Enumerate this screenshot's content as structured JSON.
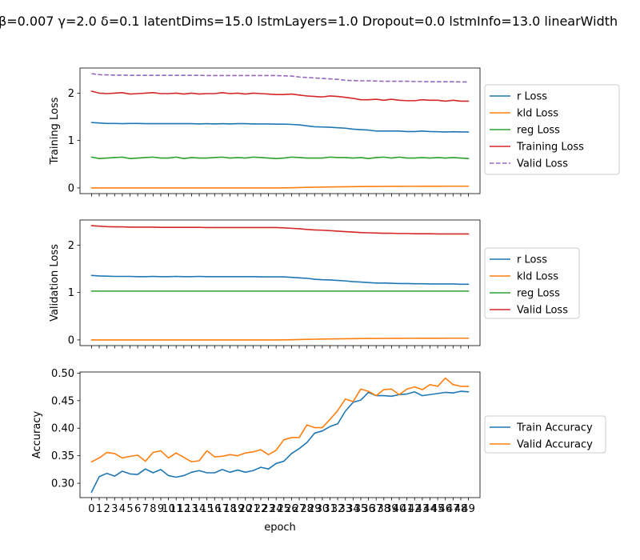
{
  "figure": {
    "title": "β=0.007 γ=2.0 δ=0.1 latentDims=15.0 lstmLayers=1.0 Dropout=0.0 lstmInfo=13.0 linearWidth",
    "xlabel": "epoch"
  },
  "chart_data": [
    {
      "type": "line",
      "ylabel": "Training Loss",
      "xlim": [
        -1.5,
        50.5
      ],
      "ylim": [
        -0.12,
        2.53
      ],
      "yticks": [
        0,
        1,
        2
      ],
      "grid": false,
      "legend_placement": "outside-right",
      "series": [
        {
          "name": "r Loss",
          "color": "#1f77b4",
          "dash": "solid",
          "values": [
            1.38,
            1.37,
            1.36,
            1.36,
            1.355,
            1.36,
            1.36,
            1.355,
            1.355,
            1.355,
            1.355,
            1.355,
            1.355,
            1.355,
            1.35,
            1.355,
            1.35,
            1.355,
            1.35,
            1.355,
            1.355,
            1.35,
            1.35,
            1.35,
            1.345,
            1.345,
            1.34,
            1.33,
            1.31,
            1.29,
            1.285,
            1.28,
            1.27,
            1.26,
            1.24,
            1.23,
            1.22,
            1.2,
            1.2,
            1.2,
            1.2,
            1.19,
            1.19,
            1.2,
            1.19,
            1.185,
            1.18,
            1.185,
            1.18,
            1.18
          ]
        },
        {
          "name": "kld Loss",
          "color": "#ff7f0e",
          "dash": "solid",
          "values": [
            0.0,
            0.0,
            0.0,
            0.0,
            0.0,
            0.0,
            0.0,
            0.0,
            0.0,
            0.0,
            0.0,
            0.0,
            0.0,
            0.0,
            0.0,
            0.0,
            0.0,
            0.0,
            0.0,
            0.0,
            0.0,
            0.0,
            0.0,
            0.0,
            0.0,
            0.002,
            0.004,
            0.008,
            0.012,
            0.015,
            0.018,
            0.02,
            0.022,
            0.024,
            0.026,
            0.028,
            0.03,
            0.031,
            0.032,
            0.033,
            0.033,
            0.034,
            0.034,
            0.035,
            0.035,
            0.035,
            0.036,
            0.036,
            0.036,
            0.036
          ]
        },
        {
          "name": "reg Loss",
          "color": "#2ca02c",
          "dash": "solid",
          "values": [
            0.65,
            0.62,
            0.63,
            0.64,
            0.65,
            0.62,
            0.63,
            0.64,
            0.65,
            0.63,
            0.63,
            0.65,
            0.62,
            0.64,
            0.63,
            0.63,
            0.64,
            0.65,
            0.63,
            0.64,
            0.63,
            0.65,
            0.64,
            0.63,
            0.62,
            0.63,
            0.65,
            0.64,
            0.63,
            0.63,
            0.63,
            0.65,
            0.64,
            0.64,
            0.63,
            0.64,
            0.62,
            0.64,
            0.65,
            0.63,
            0.65,
            0.63,
            0.63,
            0.64,
            0.63,
            0.64,
            0.63,
            0.64,
            0.63,
            0.62
          ]
        },
        {
          "name": "Training Loss",
          "color": "#d62728",
          "dash": "solid",
          "values": [
            2.04,
            2.0,
            1.99,
            2.0,
            2.01,
            1.98,
            1.99,
            2.0,
            2.01,
            1.99,
            1.99,
            2.0,
            1.98,
            2.0,
            1.98,
            1.99,
            1.99,
            2.01,
            1.99,
            2.0,
            1.98,
            2.0,
            1.99,
            1.98,
            1.97,
            1.97,
            1.98,
            1.96,
            1.94,
            1.93,
            1.92,
            1.94,
            1.93,
            1.91,
            1.89,
            1.86,
            1.86,
            1.87,
            1.85,
            1.87,
            1.85,
            1.84,
            1.84,
            1.86,
            1.85,
            1.85,
            1.83,
            1.85,
            1.83,
            1.83
          ]
        },
        {
          "name": "Valid Loss",
          "color": "#9467bd",
          "dash": "dashed",
          "values": [
            2.41,
            2.39,
            2.385,
            2.38,
            2.38,
            2.375,
            2.375,
            2.375,
            2.375,
            2.375,
            2.375,
            2.375,
            2.375,
            2.375,
            2.375,
            2.37,
            2.37,
            2.37,
            2.37,
            2.37,
            2.37,
            2.37,
            2.37,
            2.37,
            2.37,
            2.365,
            2.36,
            2.34,
            2.33,
            2.32,
            2.31,
            2.3,
            2.29,
            2.27,
            2.265,
            2.26,
            2.26,
            2.255,
            2.25,
            2.25,
            2.25,
            2.25,
            2.245,
            2.245,
            2.24,
            2.24,
            2.24,
            2.24,
            2.235,
            2.235
          ]
        }
      ]
    },
    {
      "type": "line",
      "ylabel": "Validation Loss",
      "xlim": [
        -1.5,
        50.5
      ],
      "ylim": [
        -0.12,
        2.53
      ],
      "yticks": [
        0,
        1,
        2
      ],
      "grid": false,
      "legend_placement": "outside-right",
      "series": [
        {
          "name": "r Loss",
          "color": "#1f77b4",
          "dash": "solid",
          "values": [
            1.36,
            1.35,
            1.345,
            1.34,
            1.34,
            1.34,
            1.335,
            1.335,
            1.34,
            1.335,
            1.335,
            1.34,
            1.335,
            1.335,
            1.34,
            1.335,
            1.335,
            1.335,
            1.335,
            1.335,
            1.335,
            1.335,
            1.33,
            1.33,
            1.33,
            1.33,
            1.32,
            1.31,
            1.3,
            1.28,
            1.27,
            1.265,
            1.255,
            1.245,
            1.23,
            1.22,
            1.21,
            1.2,
            1.2,
            1.195,
            1.19,
            1.19,
            1.185,
            1.185,
            1.18,
            1.18,
            1.18,
            1.18,
            1.175,
            1.175
          ]
        },
        {
          "name": "kld Loss",
          "color": "#ff7f0e",
          "dash": "solid",
          "values": [
            0.0,
            0.0,
            0.0,
            0.0,
            0.0,
            0.0,
            0.0,
            0.0,
            0.0,
            0.0,
            0.0,
            0.0,
            0.0,
            0.0,
            0.0,
            0.0,
            0.0,
            0.0,
            0.0,
            0.0,
            0.0,
            0.0,
            0.0,
            0.0,
            0.0,
            0.002,
            0.004,
            0.008,
            0.012,
            0.015,
            0.018,
            0.02,
            0.022,
            0.024,
            0.026,
            0.028,
            0.03,
            0.031,
            0.032,
            0.033,
            0.033,
            0.034,
            0.034,
            0.035,
            0.035,
            0.035,
            0.036,
            0.036,
            0.036,
            0.036
          ]
        },
        {
          "name": "reg Loss",
          "color": "#2ca02c",
          "dash": "solid",
          "values": [
            1.03,
            1.03,
            1.03,
            1.03,
            1.03,
            1.03,
            1.03,
            1.03,
            1.03,
            1.03,
            1.03,
            1.03,
            1.03,
            1.03,
            1.03,
            1.03,
            1.03,
            1.03,
            1.03,
            1.03,
            1.03,
            1.03,
            1.03,
            1.03,
            1.03,
            1.03,
            1.03,
            1.03,
            1.03,
            1.03,
            1.03,
            1.03,
            1.03,
            1.03,
            1.03,
            1.03,
            1.03,
            1.03,
            1.03,
            1.03,
            1.03,
            1.03,
            1.03,
            1.03,
            1.03,
            1.03,
            1.03,
            1.03,
            1.03,
            1.03
          ]
        },
        {
          "name": "Valid Loss",
          "color": "#d62728",
          "dash": "solid",
          "values": [
            2.41,
            2.4,
            2.39,
            2.385,
            2.385,
            2.38,
            2.38,
            2.38,
            2.38,
            2.375,
            2.375,
            2.375,
            2.375,
            2.375,
            2.375,
            2.37,
            2.37,
            2.37,
            2.37,
            2.37,
            2.37,
            2.37,
            2.37,
            2.37,
            2.37,
            2.365,
            2.355,
            2.345,
            2.33,
            2.32,
            2.315,
            2.305,
            2.295,
            2.285,
            2.275,
            2.265,
            2.26,
            2.255,
            2.25,
            2.25,
            2.245,
            2.245,
            2.24,
            2.24,
            2.24,
            2.235,
            2.235,
            2.235,
            2.235,
            2.235
          ]
        }
      ]
    },
    {
      "type": "line",
      "ylabel": "Accuracy",
      "xlabel": "epoch",
      "xlim": [
        -1.5,
        50.5
      ],
      "ylim": [
        0.274,
        0.502
      ],
      "yticks": [
        0.3,
        0.35,
        0.4,
        0.45,
        0.5
      ],
      "ytick_labels": [
        "0.30",
        "0.35",
        "0.40",
        "0.45",
        "0.50"
      ],
      "xticks": [
        0,
        1,
        2,
        3,
        4,
        5,
        6,
        7,
        8,
        9,
        10,
        11,
        12,
        13,
        14,
        15,
        16,
        17,
        18,
        19,
        20,
        21,
        22,
        23,
        24,
        25,
        26,
        27,
        28,
        29,
        30,
        31,
        32,
        33,
        34,
        35,
        36,
        37,
        38,
        39,
        40,
        41,
        42,
        43,
        44,
        45,
        46,
        47,
        48,
        49
      ],
      "grid": false,
      "legend_placement": "outside-right",
      "series": [
        {
          "name": "Train Accuracy",
          "color": "#1f77b4",
          "dash": "solid",
          "values": [
            0.284,
            0.312,
            0.318,
            0.313,
            0.322,
            0.317,
            0.316,
            0.326,
            0.319,
            0.325,
            0.314,
            0.311,
            0.314,
            0.32,
            0.323,
            0.319,
            0.319,
            0.325,
            0.32,
            0.324,
            0.32,
            0.323,
            0.329,
            0.326,
            0.336,
            0.34,
            0.354,
            0.363,
            0.374,
            0.391,
            0.395,
            0.403,
            0.408,
            0.431,
            0.447,
            0.451,
            0.465,
            0.459,
            0.459,
            0.458,
            0.461,
            0.462,
            0.466,
            0.459,
            0.461,
            0.463,
            0.465,
            0.464,
            0.467,
            0.466
          ]
        },
        {
          "name": "Valid Accuracy",
          "color": "#ff7f0e",
          "dash": "solid",
          "values": [
            0.339,
            0.346,
            0.356,
            0.354,
            0.346,
            0.349,
            0.351,
            0.34,
            0.356,
            0.359,
            0.346,
            0.355,
            0.347,
            0.339,
            0.341,
            0.359,
            0.348,
            0.349,
            0.352,
            0.35,
            0.355,
            0.357,
            0.361,
            0.352,
            0.36,
            0.379,
            0.383,
            0.383,
            0.406,
            0.401,
            0.401,
            0.416,
            0.432,
            0.453,
            0.448,
            0.471,
            0.467,
            0.459,
            0.47,
            0.471,
            0.461,
            0.471,
            0.475,
            0.47,
            0.479,
            0.476,
            0.491,
            0.479,
            0.476,
            0.476
          ]
        }
      ]
    }
  ]
}
